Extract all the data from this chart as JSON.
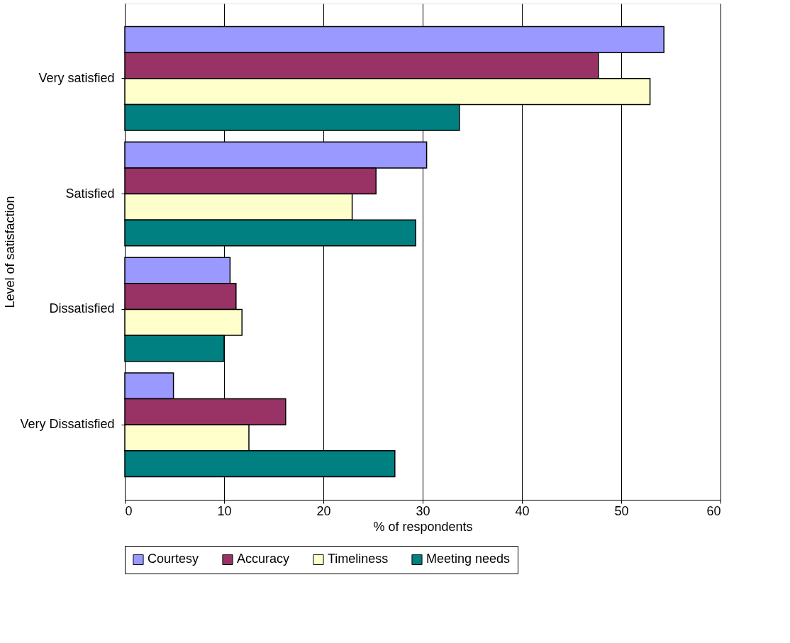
{
  "chart_data": {
    "type": "bar",
    "orientation": "horizontal",
    "xlabel": "% of respondents",
    "ylabel": "Level of satisfaction",
    "categories": [
      "Very satisfied",
      "Satisfied",
      "Dissatisfied",
      "Very Dissatisfied"
    ],
    "series": [
      {
        "name": "Courtesy",
        "color": "#9999ff",
        "values": [
          54.3,
          30.4,
          10.6,
          4.9
        ]
      },
      {
        "name": "Accuracy",
        "color": "#993366",
        "values": [
          47.7,
          25.3,
          11.2,
          16.2
        ]
      },
      {
        "name": "Timeliness",
        "color": "#ffffcc",
        "values": [
          52.9,
          22.9,
          11.8,
          12.5
        ]
      },
      {
        "name": "Meeting needs",
        "color": "#008080",
        "values": [
          33.7,
          29.3,
          10.0,
          27.2
        ]
      }
    ],
    "xlim": [
      0,
      60
    ],
    "xticks": [
      0,
      10,
      20,
      30,
      40,
      50,
      60
    ],
    "grid": "x",
    "legend": "bottom"
  }
}
